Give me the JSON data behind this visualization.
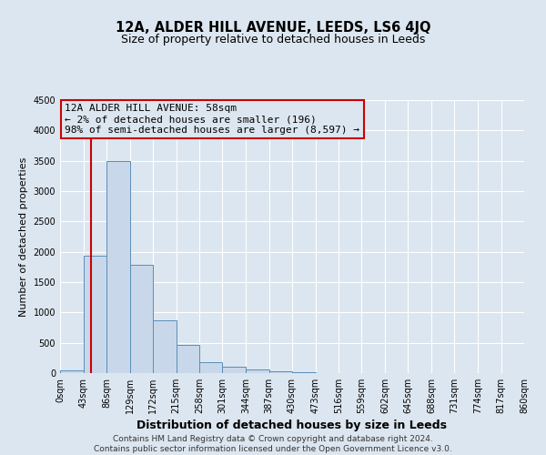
{
  "title": "12A, ALDER HILL AVENUE, LEEDS, LS6 4JQ",
  "subtitle": "Size of property relative to detached houses in Leeds",
  "xlabel": "Distribution of detached houses by size in Leeds",
  "ylabel": "Number of detached properties",
  "bar_color": "#c8d8ea",
  "bar_edge_color": "#5b8db8",
  "background_color": "#dce6f0",
  "grid_color": "#ffffff",
  "bin_edges": [
    0,
    43,
    86,
    129,
    172,
    215,
    258,
    301,
    344,
    387,
    430,
    473,
    516,
    559,
    602,
    645,
    688,
    731,
    774,
    817,
    860
  ],
  "bin_labels": [
    "0sqm",
    "43sqm",
    "86sqm",
    "129sqm",
    "172sqm",
    "215sqm",
    "258sqm",
    "301sqm",
    "344sqm",
    "387sqm",
    "430sqm",
    "473sqm",
    "516sqm",
    "559sqm",
    "602sqm",
    "645sqm",
    "688sqm",
    "731sqm",
    "774sqm",
    "817sqm",
    "860sqm"
  ],
  "bar_heights": [
    50,
    1940,
    3500,
    1780,
    870,
    460,
    185,
    100,
    55,
    30,
    10,
    5,
    3,
    2,
    1,
    0,
    0,
    0,
    0,
    0
  ],
  "property_size": 58,
  "vline_color": "#cc0000",
  "annotation_line1": "12A ALDER HILL AVENUE: 58sqm",
  "annotation_line2": "← 2% of detached houses are smaller (196)",
  "annotation_line3": "98% of semi-detached houses are larger (8,597) →",
  "annotation_box_edge_color": "#cc0000",
  "ylim": [
    0,
    4500
  ],
  "yticks": [
    0,
    500,
    1000,
    1500,
    2000,
    2500,
    3000,
    3500,
    4000,
    4500
  ],
  "footer_line1": "Contains HM Land Registry data © Crown copyright and database right 2024.",
  "footer_line2": "Contains public sector information licensed under the Open Government Licence v3.0.",
  "title_fontsize": 10.5,
  "subtitle_fontsize": 9,
  "xlabel_fontsize": 9,
  "ylabel_fontsize": 8,
  "tick_fontsize": 7,
  "annotation_fontsize": 8,
  "footer_fontsize": 6.5
}
